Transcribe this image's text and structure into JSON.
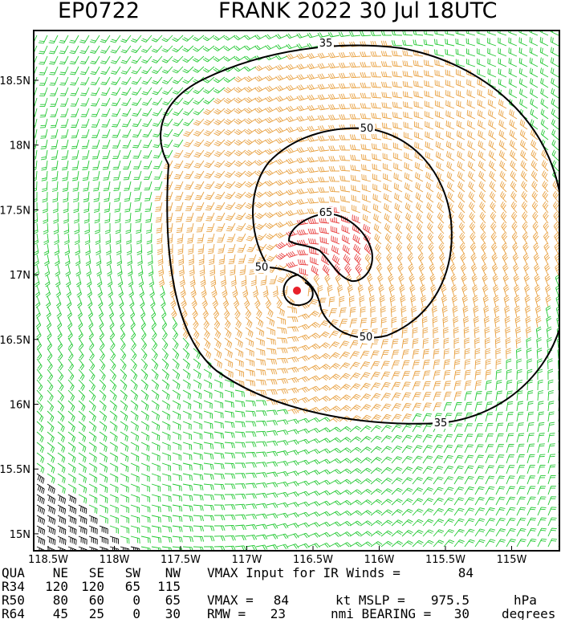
{
  "header": {
    "id": "EP0722",
    "title": "FRANK 2022 30 Jul 18UTC"
  },
  "map": {
    "lon_labels": [
      "118.5W",
      "118W",
      "117.5W",
      "117W",
      "116.5W",
      "116W",
      "115.5W",
      "115W"
    ],
    "lat_labels": [
      "18.5N",
      "18N",
      "17.5N",
      "17N",
      "16.5N",
      "16N",
      "15.5N",
      "15N"
    ],
    "contour_labels": [
      "35",
      "50",
      "65",
      "50",
      "50",
      "35"
    ]
  },
  "footer": {
    "rows": [
      [
        "QUA",
        "NE",
        "SE",
        "SW",
        "NW"
      ],
      [
        "R34",
        "120",
        "120",
        "65",
        "115"
      ],
      [
        "R50",
        "80",
        "60",
        "0",
        "65"
      ],
      [
        "R64",
        "45",
        "25",
        "0",
        "30"
      ]
    ],
    "notes": [
      [
        "VMAX Input for IR Winds =",
        "84"
      ],
      [
        "VMAX =",
        "84",
        "kt MSLP =",
        "975.5",
        "hPa"
      ],
      [
        "RMW =",
        "23",
        "nmi BEARING =",
        "30",
        "degrees"
      ]
    ]
  }
}
